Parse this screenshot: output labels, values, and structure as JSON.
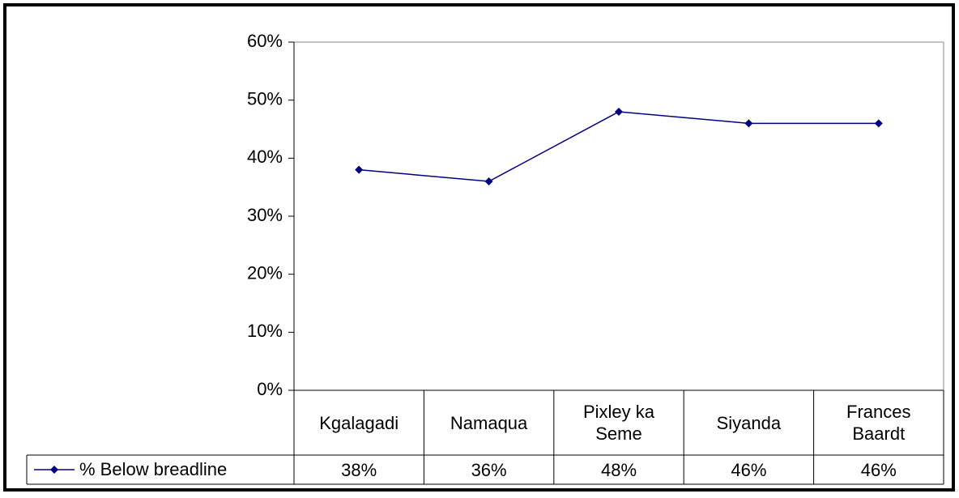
{
  "chart_data": {
    "type": "line",
    "categories": [
      "Kgalagadi",
      "Namaqua",
      "Pixley ka Seme",
      "Siyanda",
      "Frances Baardt"
    ],
    "series": [
      {
        "name": "% Below breadline",
        "color": "#000080",
        "values": [
          38,
          36,
          48,
          46,
          46
        ],
        "value_labels": [
          "38%",
          "36%",
          "48%",
          "46%",
          "46%"
        ]
      }
    ],
    "ylim": [
      0,
      60
    ],
    "yticks": [
      {
        "value": 0,
        "label": "0%"
      },
      {
        "value": 10,
        "label": "10%"
      },
      {
        "value": 20,
        "label": "20%"
      },
      {
        "value": 30,
        "label": "30%"
      },
      {
        "value": 40,
        "label": "40%"
      },
      {
        "value": 50,
        "label": "50%"
      },
      {
        "value": 60,
        "label": "60%"
      }
    ],
    "grid": false
  }
}
